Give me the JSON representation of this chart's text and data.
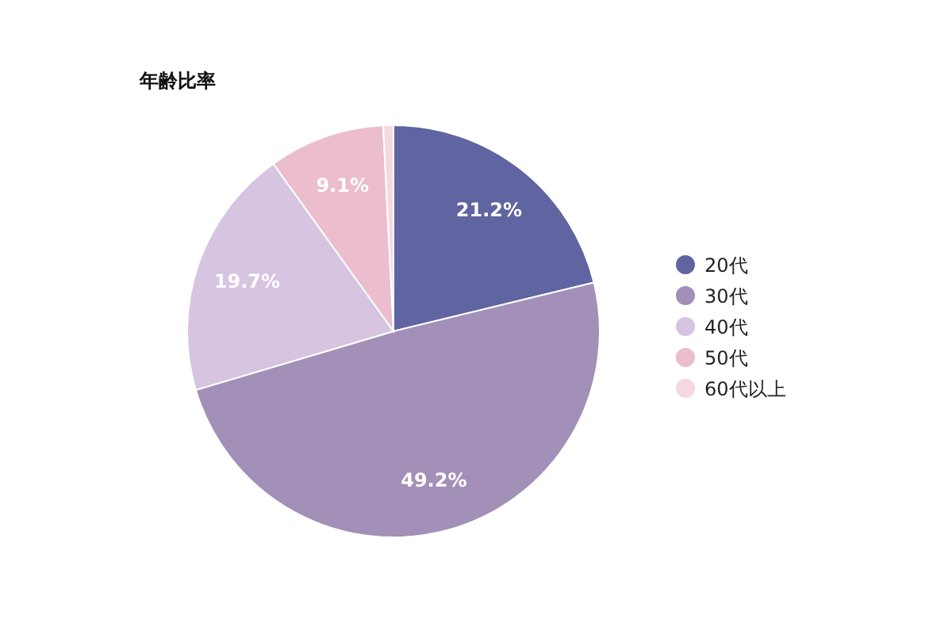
{
  "chart_data": {
    "type": "pie",
    "title": "年齢比率",
    "categories": [
      "20代",
      "30代",
      "40代",
      "50代",
      "60代以上"
    ],
    "values": [
      21.2,
      49.2,
      19.7,
      9.1,
      0.8
    ],
    "value_labels": [
      "21.2%",
      "49.2%",
      "19.7%",
      "9.1%",
      null
    ],
    "colors": [
      "#6064a0",
      "#a290b8",
      "#d6c4e1",
      "#ebbdcd",
      "#f6d8e0"
    ],
    "legend": "right"
  }
}
